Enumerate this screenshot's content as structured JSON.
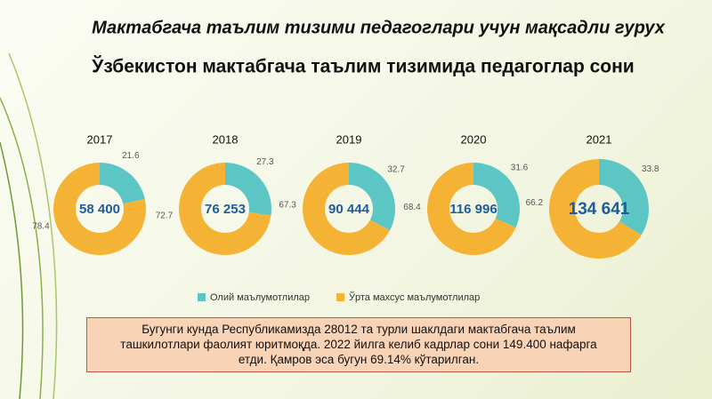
{
  "title": "Мактабгача таълим тизими педагоглари  учун  мақсадли  гурух",
  "subtitle": "Ўзбекистон мактабгача таълим тизимида педагоглар сони",
  "note": "Бугунги  кунда  Республикамизда 28012 та турли  шаклдаги мактабгача таълим ташкилотлари фаолият  юритмоқда.  2022 йилга келиб  кадрлар сони 149.400 нафарга етди. Қамров эса бугун 69.14% кўтарилган.",
  "chart_data": [
    {
      "type": "donut",
      "title": "2017",
      "center_label": "58 400",
      "categories": [
        "Олий маълумотлилар",
        "Ўрта махсус маълумотлилар"
      ],
      "values": [
        21.6,
        78.4
      ],
      "colors": [
        "#5cc6c4",
        "#f5b335"
      ]
    },
    {
      "type": "donut",
      "title": "2018",
      "center_label": "76 253",
      "categories": [
        "Олий маълумотлилар",
        "Ўрта махсус маълумотлилар"
      ],
      "values": [
        27.3,
        72.7
      ],
      "colors": [
        "#5cc6c4",
        "#f5b335"
      ]
    },
    {
      "type": "donut",
      "title": "2019",
      "center_label": "90 444",
      "categories": [
        "Олий маълумотлилар",
        "Ўрта махсус маълумотлилар"
      ],
      "values": [
        32.7,
        67.3
      ],
      "colors": [
        "#5cc6c4",
        "#f5b335"
      ]
    },
    {
      "type": "donut",
      "title": "2020",
      "center_label": "116 996",
      "categories": [
        "Олий маълумотлилар",
        "Ўрта махсус маълумотлилар"
      ],
      "values": [
        31.6,
        68.4
      ],
      "colors": [
        "#5cc6c4",
        "#f5b335"
      ]
    },
    {
      "type": "donut",
      "title": "2021",
      "center_label": "134 641",
      "categories": [
        "Олий маълумотлилар",
        "Ўрта махсус маълумотлилар"
      ],
      "values": [
        33.8,
        66.2
      ],
      "colors": [
        "#5cc6c4",
        "#f5b335"
      ]
    }
  ]
}
